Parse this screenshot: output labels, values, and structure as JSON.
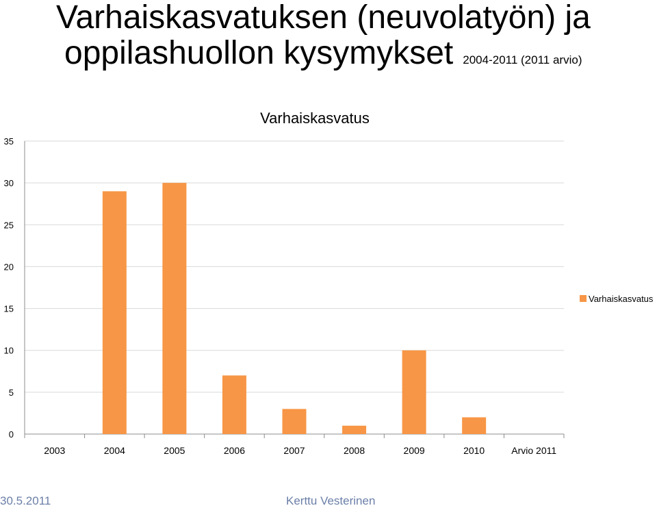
{
  "slide": {
    "title_line1": "Varhaiskasvatuksen (neuvolatyön) ja",
    "title_line2": "oppilashuollon kysymykset",
    "subtitle": "2004-2011 (2011 arvio)",
    "footer_date": "30.5.2011",
    "footer_author": "Kerttu Vesterinen"
  },
  "chart_data": {
    "type": "bar",
    "title": "Varhaiskasvatus",
    "categories": [
      "2003",
      "2004",
      "2005",
      "2006",
      "2007",
      "2008",
      "2009",
      "2010",
      "Arvio 2011"
    ],
    "series": [
      {
        "name": "Varhaiskasvatus",
        "values": [
          0,
          29,
          30,
          7,
          3,
          1,
          10,
          2,
          0
        ],
        "color": "#F79646"
      }
    ],
    "ylim": [
      0,
      35
    ],
    "yticks": [
      0,
      5,
      10,
      15,
      20,
      25,
      30,
      35
    ],
    "grid": true,
    "legend": "right",
    "xlabel": "",
    "ylabel": ""
  }
}
